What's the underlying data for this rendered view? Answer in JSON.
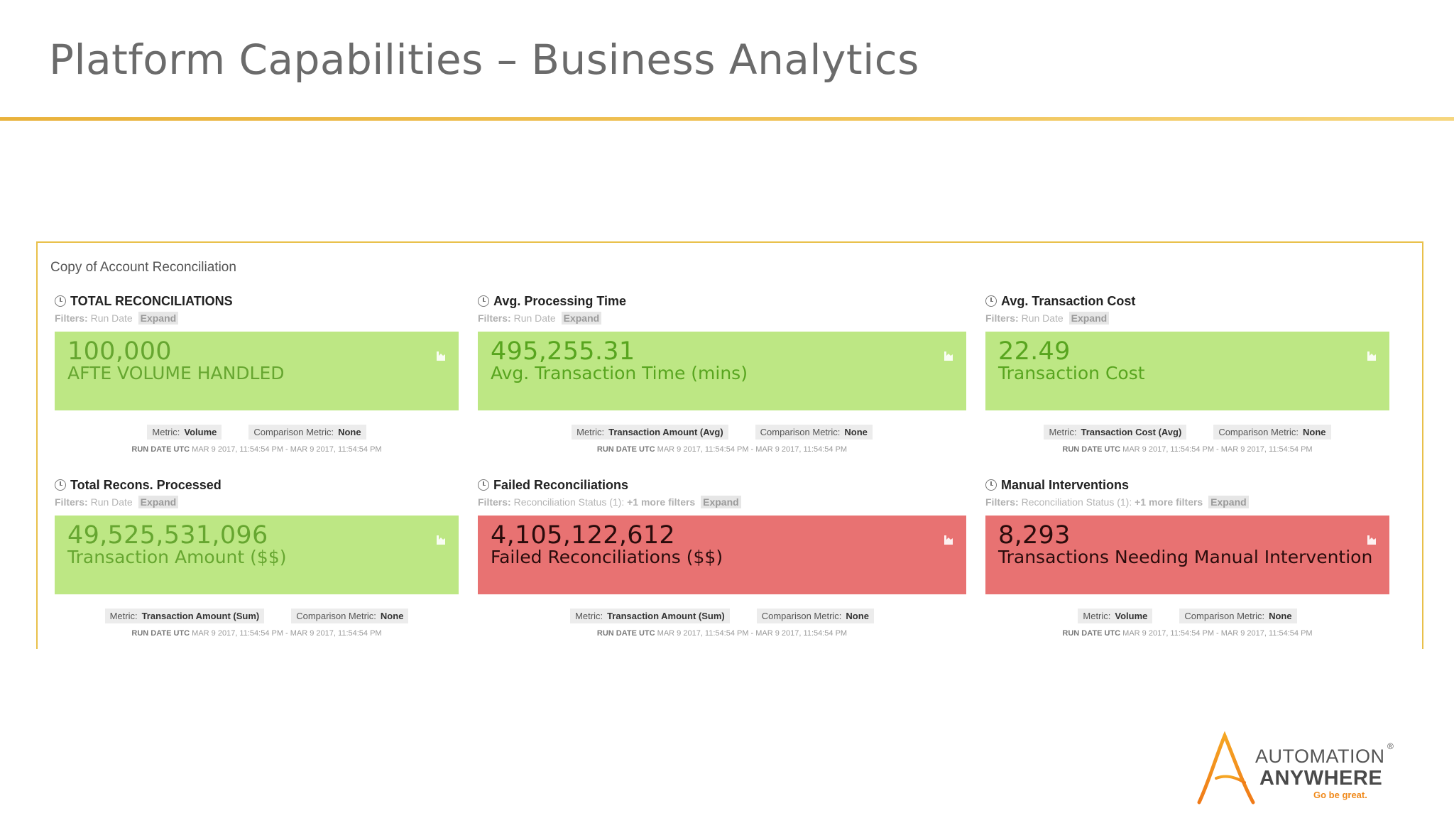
{
  "slide": {
    "title": "Platform Capabilities – Business Analytics"
  },
  "dashboard": {
    "title": "Copy of Account Reconciliation",
    "cards": [
      {
        "title": "TOTAL RECONCILIATIONS",
        "filters_label": "Filters:",
        "filters_text": "Run Date",
        "expand": "Expand",
        "value": "100,000",
        "label": "AFTE VOLUME HANDLED",
        "status": "green",
        "metric_label": "Metric:",
        "metric_value": "Volume",
        "comparison_label": "Comparison Metric:",
        "comparison_value": "None",
        "run_label": "RUN DATE UTC",
        "run_range": "MAR 9 2017, 11:54:54 PM - MAR 9 2017, 11:54:54 PM"
      },
      {
        "title": "Avg. Processing Time",
        "filters_label": "Filters:",
        "filters_text": "Run Date",
        "expand": "Expand",
        "value": "495,255.31",
        "label": "Avg. Transaction Time (mins)",
        "status": "green",
        "metric_label": "Metric:",
        "metric_value": "Transaction Amount (Avg)",
        "comparison_label": "Comparison Metric:",
        "comparison_value": "None",
        "run_label": "RUN DATE UTC",
        "run_range": "MAR 9 2017, 11:54:54 PM - MAR 9 2017, 11:54:54 PM"
      },
      {
        "title": "Avg. Transaction Cost",
        "filters_label": "Filters:",
        "filters_text": "Run Date",
        "expand": "Expand",
        "value": "22.49",
        "label": "Transaction Cost",
        "status": "green",
        "metric_label": "Metric:",
        "metric_value": "Transaction Cost (Avg)",
        "comparison_label": "Comparison Metric:",
        "comparison_value": "None",
        "run_label": "RUN DATE UTC",
        "run_range": "MAR 9 2017, 11:54:54 PM - MAR 9 2017, 11:54:54 PM"
      },
      {
        "title": "Total Recons. Processed",
        "filters_label": "Filters:",
        "filters_text": "Run Date",
        "expand": "Expand",
        "value": "49,525,531,096",
        "label": "Transaction Amount ($$)",
        "status": "green",
        "metric_label": "Metric:",
        "metric_value": "Transaction Amount (Sum)",
        "comparison_label": "Comparison Metric:",
        "comparison_value": "None",
        "run_label": "RUN DATE UTC",
        "run_range": "MAR 9 2017, 11:54:54 PM - MAR 9 2017, 11:54:54 PM"
      },
      {
        "title": "Failed Reconciliations",
        "filters_label": "Filters:",
        "filters_text": "Reconciliation Status (1):",
        "filters_more": "+1 more filters",
        "expand": "Expand",
        "value": "4,105,122,612",
        "label": "Failed Reconciliations ($$)",
        "status": "red",
        "metric_label": "Metric:",
        "metric_value": "Transaction Amount (Sum)",
        "comparison_label": "Comparison Metric:",
        "comparison_value": "None",
        "run_label": "RUN DATE UTC",
        "run_range": "MAR 9 2017, 11:54:54 PM - MAR 9 2017, 11:54:54 PM"
      },
      {
        "title": "Manual Interventions",
        "filters_label": "Filters:",
        "filters_text": "Reconciliation Status (1):",
        "filters_more": "+1 more filters",
        "expand": "Expand",
        "value": "8,293",
        "label": "Transactions Needing Manual Intervention",
        "status": "red",
        "metric_label": "Metric:",
        "metric_value": "Volume",
        "comparison_label": "Comparison Metric:",
        "comparison_value": "None",
        "run_label": "RUN DATE UTC",
        "run_range": "MAR 9 2017, 11:54:54 PM - MAR 9 2017, 11:54:54 PM"
      }
    ]
  },
  "logo": {
    "line1": "AUTOMATION",
    "line2": "ANYWHERE",
    "tagline": "Go be great.",
    "registered": "®"
  },
  "colors": {
    "accent_rule": "#f1c45a",
    "kpi_green": "#bde784",
    "kpi_red": "#e87272",
    "logo_orange": "#f08a1c"
  },
  "icons": [
    "clock-icon",
    "chart-icon"
  ]
}
